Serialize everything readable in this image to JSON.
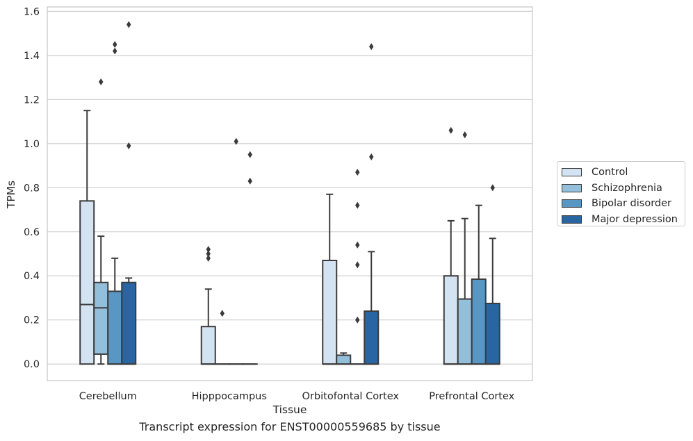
{
  "caption": "Transcript expression for ENST00000559685 by tissue",
  "chart_data": {
    "type": "box",
    "xlabel": "Tissue",
    "ylabel": "TPMs",
    "ylim": [
      -0.075,
      1.62
    ],
    "yticks": [
      "0.0",
      "0.2",
      "0.4",
      "0.6",
      "0.8",
      "1.0",
      "1.2",
      "1.4",
      "1.6"
    ],
    "grid": "horizontal",
    "legend_position": "outside-right",
    "categories": [
      "Cerebellum",
      "Hipppocampus",
      "Orbitofontal Cortex",
      "Prefrontal Cortex"
    ],
    "series": [
      {
        "name": "Control",
        "color": "#d3e3f1",
        "boxes": [
          {
            "q1": 0.0,
            "median": 0.27,
            "q3": 0.74,
            "whisker_low": 0.0,
            "whisker_high": 1.15,
            "outliers": []
          },
          {
            "q1": 0.0,
            "median": 0.0,
            "q3": 0.17,
            "whisker_low": 0.0,
            "whisker_high": 0.34,
            "outliers": [
              0.48,
              0.5,
              0.52
            ]
          },
          {
            "q1": 0.0,
            "median": 0.0,
            "q3": 0.47,
            "whisker_low": 0.0,
            "whisker_high": 0.77,
            "outliers": []
          },
          {
            "q1": 0.0,
            "median": 0.0,
            "q3": 0.4,
            "whisker_low": 0.0,
            "whisker_high": 0.65,
            "outliers": [
              1.06
            ]
          }
        ]
      },
      {
        "name": "Schizophrenia",
        "color": "#94bfda",
        "boxes": [
          {
            "q1": 0.045,
            "median": 0.255,
            "q3": 0.37,
            "whisker_low": 0.0,
            "whisker_high": 0.58,
            "outliers": [
              1.28
            ]
          },
          {
            "q1": 0.0,
            "median": 0.0,
            "q3": 0.0,
            "whisker_low": 0.0,
            "whisker_high": 0.0,
            "outliers": [
              0.23
            ]
          },
          {
            "q1": 0.0,
            "median": 0.0,
            "q3": 0.04,
            "whisker_low": 0.0,
            "whisker_high": 0.05,
            "outliers": []
          },
          {
            "q1": 0.0,
            "median": 0.0,
            "q3": 0.295,
            "whisker_low": 0.0,
            "whisker_high": 0.66,
            "outliers": [
              1.04
            ]
          }
        ]
      },
      {
        "name": "Bipolar disorder",
        "color": "#5897c4",
        "boxes": [
          {
            "q1": 0.0,
            "median": 0.0,
            "q3": 0.33,
            "whisker_low": 0.0,
            "whisker_high": 0.48,
            "outliers": [
              1.42,
              1.45
            ]
          },
          {
            "q1": 0.0,
            "median": 0.0,
            "q3": 0.0,
            "whisker_low": 0.0,
            "whisker_high": 0.0,
            "outliers": [
              1.01
            ]
          },
          {
            "q1": 0.0,
            "median": 0.0,
            "q3": 0.0,
            "whisker_low": 0.0,
            "whisker_high": 0.0,
            "outliers": [
              0.2,
              0.45,
              0.54,
              0.72,
              0.87
            ]
          },
          {
            "q1": 0.0,
            "median": 0.0,
            "q3": 0.385,
            "whisker_low": 0.0,
            "whisker_high": 0.72,
            "outliers": []
          }
        ]
      },
      {
        "name": "Major depression",
        "color": "#2865a2",
        "boxes": [
          {
            "q1": 0.0,
            "median": 0.0,
            "q3": 0.37,
            "whisker_low": 0.0,
            "whisker_high": 0.39,
            "outliers": [
              0.99,
              1.54
            ]
          },
          {
            "q1": 0.0,
            "median": 0.0,
            "q3": 0.0,
            "whisker_low": 0.0,
            "whisker_high": 0.0,
            "outliers": [
              0.83,
              0.95
            ]
          },
          {
            "q1": 0.0,
            "median": 0.0,
            "q3": 0.24,
            "whisker_low": 0.0,
            "whisker_high": 0.51,
            "outliers": [
              0.94,
              1.44
            ]
          },
          {
            "q1": 0.0,
            "median": 0.0,
            "q3": 0.275,
            "whisker_low": 0.0,
            "whisker_high": 0.57,
            "outliers": [
              0.8
            ]
          }
        ]
      }
    ]
  }
}
